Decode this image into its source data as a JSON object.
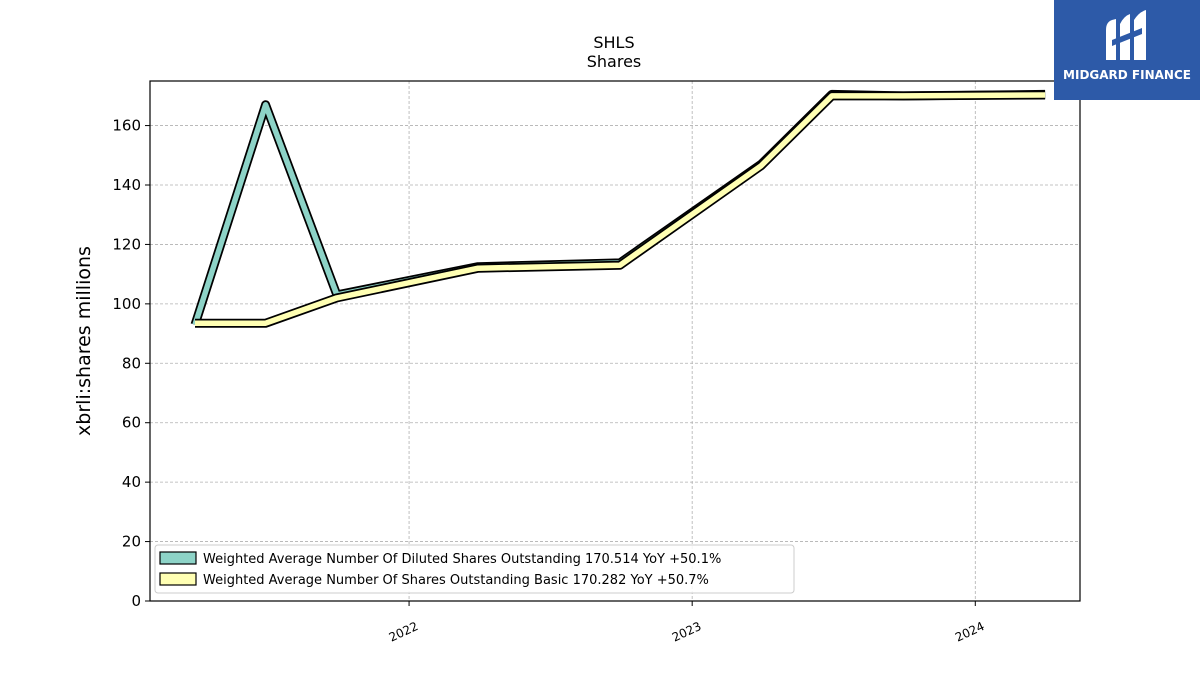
{
  "brand": {
    "name": "MIDGARD FINANCE",
    "bg_color": "#2d5aa8",
    "icon": "midgard-m-logo-icon"
  },
  "chart_data": {
    "type": "line",
    "title": "SHLS",
    "subtitle": "Shares",
    "ylabel": "xbrli:shares millions",
    "xlabel": "",
    "xlim": [
      "2021-02-01",
      "2024-05-15"
    ],
    "ylim": [
      0,
      175
    ],
    "yticks": [
      0,
      20,
      40,
      60,
      80,
      100,
      120,
      140,
      160
    ],
    "xticks": [
      {
        "date": "2022-01-01",
        "label": "2022"
      },
      {
        "date": "2023-01-01",
        "label": "2023"
      },
      {
        "date": "2024-01-01",
        "label": "2024"
      }
    ],
    "grid": true,
    "legend_position": "lower-left",
    "series": [
      {
        "name": "Weighted Average Number Of Diluted Shares Outstanding",
        "legend": "Weighted Average Number Of Diluted Shares Outstanding  170.514 YoY +50.1%",
        "color": "#8dd3c7",
        "points": [
          {
            "x": "2021-03-31",
            "y": 93.0
          },
          {
            "x": "2021-06-30",
            "y": 167.0
          },
          {
            "x": "2021-09-30",
            "y": 103.0
          },
          {
            "x": "2022-03-31",
            "y": 112.5
          },
          {
            "x": "2022-09-30",
            "y": 113.8
          },
          {
            "x": "2023-03-31",
            "y": 147.0
          },
          {
            "x": "2023-06-30",
            "y": 170.5
          },
          {
            "x": "2023-09-30",
            "y": 170.0
          },
          {
            "x": "2024-03-31",
            "y": 170.5
          }
        ]
      },
      {
        "name": "Weighted Average Number Of Shares Outstanding Basic",
        "legend": "Weighted Average Number Of Shares Outstanding Basic  170.282 YoY +50.7%",
        "color": "#ffffb3",
        "points": [
          {
            "x": "2021-03-31",
            "y": 93.5
          },
          {
            "x": "2021-06-30",
            "y": 93.5
          },
          {
            "x": "2021-09-30",
            "y": 102.0
          },
          {
            "x": "2022-03-31",
            "y": 112.0
          },
          {
            "x": "2022-09-30",
            "y": 113.0
          },
          {
            "x": "2023-03-31",
            "y": 146.5
          },
          {
            "x": "2023-06-30",
            "y": 170.0
          },
          {
            "x": "2023-09-30",
            "y": 170.0
          },
          {
            "x": "2024-03-31",
            "y": 170.3
          }
        ]
      }
    ]
  }
}
